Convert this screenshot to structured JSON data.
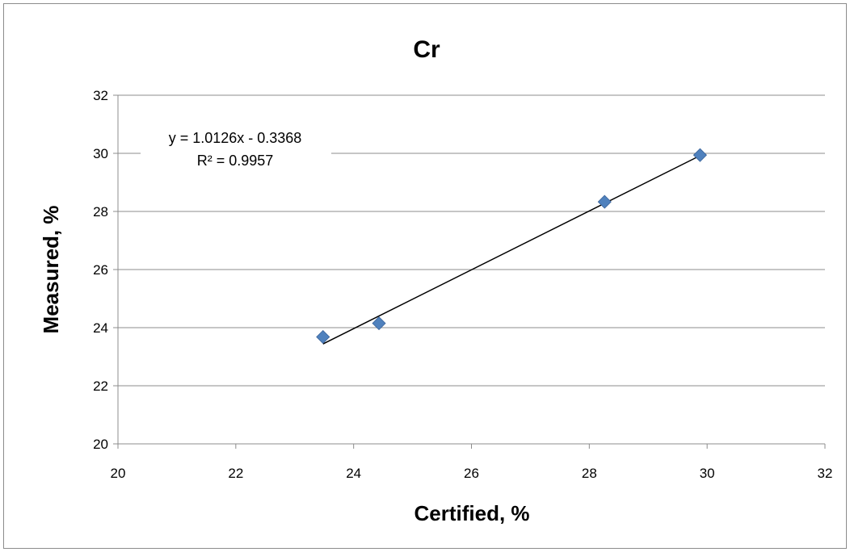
{
  "chart_data": {
    "type": "scatter",
    "title": "Cr",
    "xlabel": "Certified, %",
    "ylabel": "Measured, %",
    "xlim": [
      20,
      32
    ],
    "ylim": [
      20,
      32
    ],
    "x_ticks": [
      20,
      22,
      24,
      26,
      28,
      30,
      32
    ],
    "y_ticks": [
      20,
      22,
      24,
      26,
      28,
      30,
      32
    ],
    "grid": "horizontal",
    "series": [
      {
        "color": "#4f81bd",
        "marker": "diamond",
        "points": [
          {
            "x": 23.48,
            "y": 23.68
          },
          {
            "x": 24.43,
            "y": 24.15
          },
          {
            "x": 28.26,
            "y": 28.33
          },
          {
            "x": 29.88,
            "y": 29.94
          }
        ]
      }
    ],
    "trendline": {
      "type": "linear",
      "slope": 1.0126,
      "intercept": -0.3368,
      "x_range": [
        23.48,
        29.88
      ],
      "color": "#000000"
    },
    "annotations": {
      "equation": "y = 1.0126x - 0.3368",
      "r_squared": "R² = 0.9957"
    }
  }
}
